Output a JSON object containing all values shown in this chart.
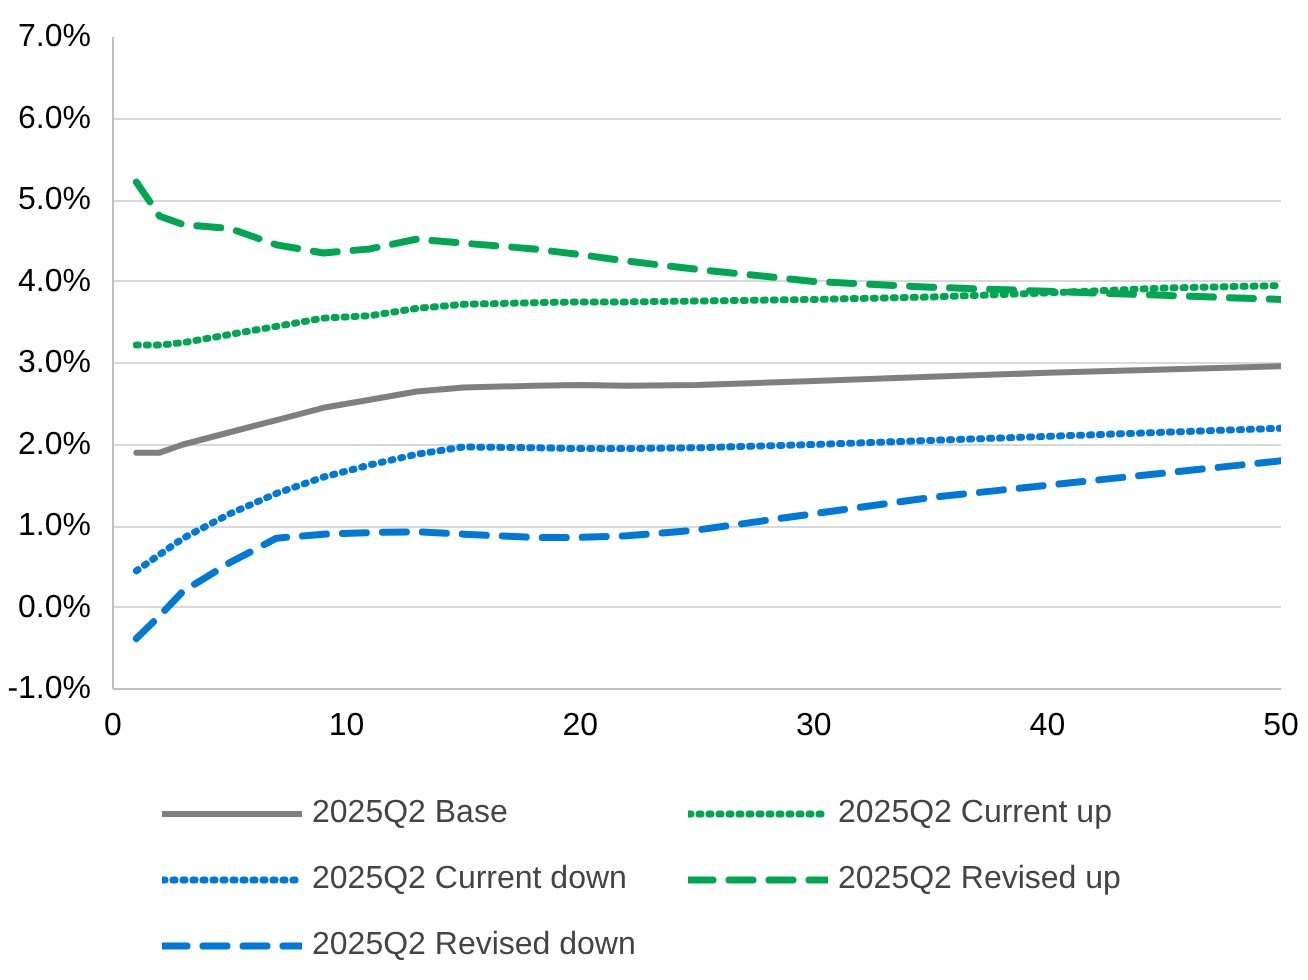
{
  "chart_data": {
    "type": "line",
    "x": [
      1,
      2,
      3,
      5,
      7,
      9,
      11,
      13,
      15,
      18,
      20,
      22,
      25,
      30,
      35,
      40,
      45,
      50
    ],
    "series": [
      {
        "name": "2025Q2 Base",
        "color": "#7f7f7f",
        "line_style": "solid",
        "values": [
          1.9,
          1.9,
          2.0,
          2.15,
          2.3,
          2.45,
          2.55,
          2.65,
          2.7,
          2.72,
          2.73,
          2.72,
          2.73,
          2.78,
          2.83,
          2.88,
          2.92,
          2.96
        ]
      },
      {
        "name": "2025Q2 Current up",
        "color": "#00a651",
        "line_style": "dotted",
        "values": [
          3.22,
          3.22,
          3.25,
          3.35,
          3.45,
          3.55,
          3.58,
          3.67,
          3.72,
          3.74,
          3.75,
          3.75,
          3.76,
          3.78,
          3.81,
          3.86,
          3.92,
          3.95
        ]
      },
      {
        "name": "2025Q2 Current down",
        "color": "#0078d7",
        "line_style": "dotted",
        "values": [
          0.45,
          0.65,
          0.85,
          1.15,
          1.4,
          1.6,
          1.75,
          1.88,
          1.97,
          1.96,
          1.95,
          1.95,
          1.96,
          2.0,
          2.05,
          2.1,
          2.15,
          2.2
        ]
      },
      {
        "name": "2025Q2 Revised up",
        "color": "#00a651",
        "line_style": "dashed",
        "values": [
          5.22,
          4.8,
          4.7,
          4.65,
          4.45,
          4.35,
          4.4,
          4.52,
          4.47,
          4.4,
          4.33,
          4.25,
          4.15,
          4.0,
          3.93,
          3.88,
          3.83,
          3.78
        ]
      },
      {
        "name": "2025Q2 Revised down",
        "color": "#0078d7",
        "line_style": "dashed",
        "values": [
          -0.38,
          -0.1,
          0.2,
          0.55,
          0.85,
          0.9,
          0.92,
          0.93,
          0.9,
          0.86,
          0.86,
          0.88,
          0.95,
          1.15,
          1.35,
          1.5,
          1.65,
          1.8
        ]
      }
    ],
    "xlim": [
      0,
      50
    ],
    "xticks": [
      0,
      10,
      20,
      30,
      40,
      50
    ],
    "ylim": [
      -1,
      7
    ],
    "yticks": [
      {
        "value": -1,
        "label": "-1.0%"
      },
      {
        "value": 0,
        "label": "0.0%"
      },
      {
        "value": 1,
        "label": "1.0%"
      },
      {
        "value": 2,
        "label": "2.0%"
      },
      {
        "value": 3,
        "label": "3.0%"
      },
      {
        "value": 4,
        "label": "4.0%"
      },
      {
        "value": 5,
        "label": "5.0%"
      },
      {
        "value": 6,
        "label": "6.0%"
      },
      {
        "value": 7,
        "label": "7.0%"
      }
    ],
    "grid": "y",
    "legend": "bottom",
    "marker": "none"
  }
}
